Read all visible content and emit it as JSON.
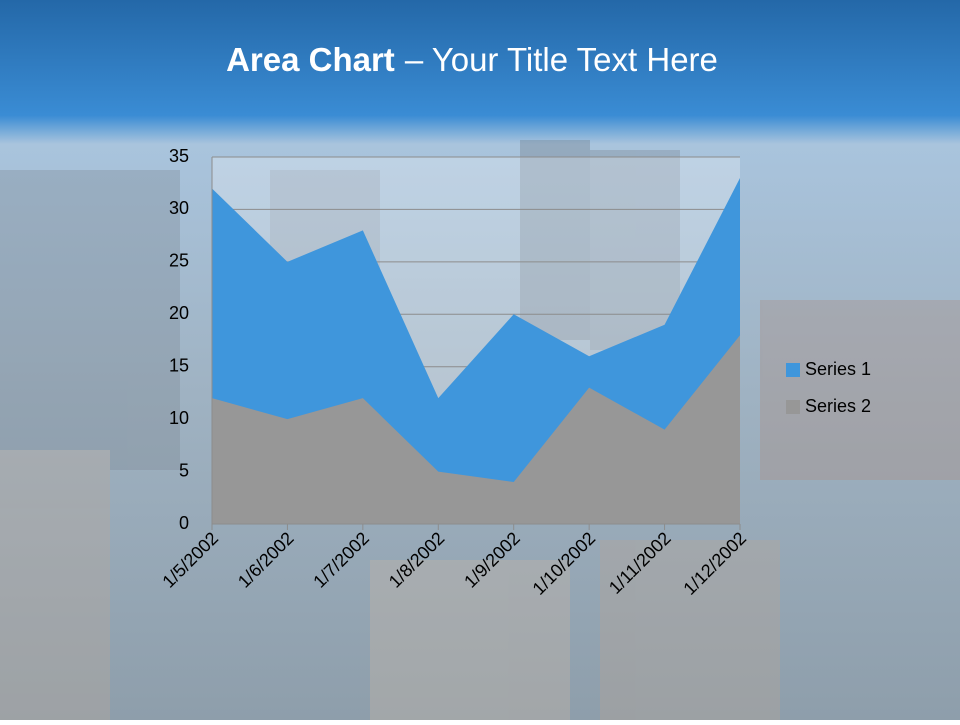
{
  "chart_data": {
    "type": "area",
    "title_parts": [
      "Area Chart",
      "– Your Title Text Here"
    ],
    "categories": [
      "1/5/2002",
      "1/6/2002",
      "1/7/2002",
      "1/8/2002",
      "1/9/2002",
      "1/10/2002",
      "1/11/2002",
      "1/12/2002"
    ],
    "series": [
      {
        "name": "Series 1",
        "color": "#3f96dc",
        "values": [
          32,
          25,
          28,
          12,
          20,
          16,
          19,
          33
        ]
      },
      {
        "name": "Series 2",
        "color": "#979797",
        "values": [
          12,
          10,
          12,
          5,
          4,
          13,
          9,
          18
        ]
      }
    ],
    "ylim": [
      0,
      35
    ],
    "yticks": [
      0,
      5,
      10,
      15,
      20,
      25,
      30,
      35
    ],
    "grid": true,
    "legend": "right"
  }
}
